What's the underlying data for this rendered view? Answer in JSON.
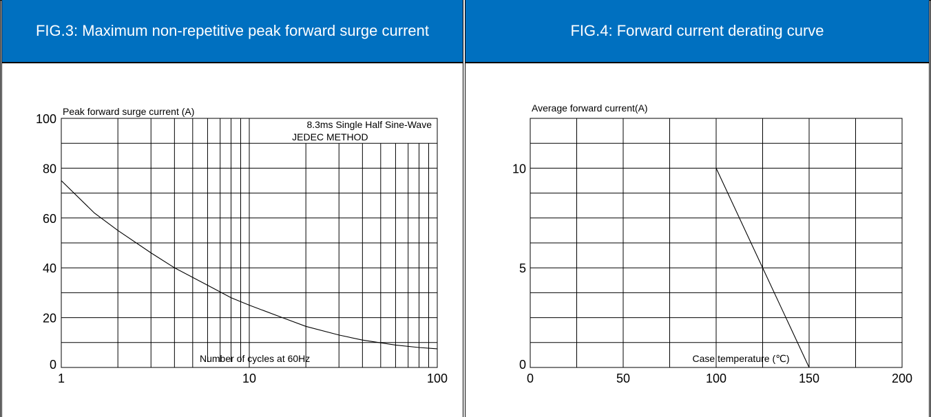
{
  "fig3": {
    "title": "FIG.3: Maximum non-repetitive peak forward surge current",
    "chart_data": {
      "type": "line",
      "title": "FIG.3: Maximum non-repetitive peak forward surge current",
      "ylabel": "Peak forward surge current (A)",
      "xlabel": "Number of cycles at 60Hz",
      "annotation": [
        "8.3ms Single Half Sine-Wave",
        "JEDEC METHOD"
      ],
      "xscale": "log",
      "xlim": [
        1,
        100
      ],
      "ylim": [
        0,
        100
      ],
      "xticks": [
        1,
        10,
        100
      ],
      "yticks": [
        0,
        20,
        40,
        60,
        80,
        100
      ],
      "grid": true,
      "series": [
        {
          "x": [
            1,
            1.5,
            2,
            3,
            4,
            6,
            8,
            10,
            15,
            20,
            30,
            40,
            60,
            80,
            100
          ],
          "y": [
            75,
            62,
            55,
            46,
            40,
            33,
            28,
            25,
            20,
            16.5,
            13,
            11,
            9,
            8,
            7.5
          ]
        }
      ]
    }
  },
  "fig4": {
    "title": "FIG.4: Forward current derating curve",
    "chart_data": {
      "type": "line",
      "title": "FIG.4: Forward current derating curve",
      "ylabel": "Average forward current(A)",
      "xlabel": "Case temperature (℃)",
      "xlim": [
        0,
        200
      ],
      "ylim": [
        0,
        12.5
      ],
      "xticks": [
        0,
        50,
        100,
        150,
        200
      ],
      "yticks": [
        0,
        5,
        10
      ],
      "grid": true,
      "series": [
        {
          "x": [
            100,
            150
          ],
          "y": [
            10,
            0
          ]
        }
      ]
    }
  }
}
